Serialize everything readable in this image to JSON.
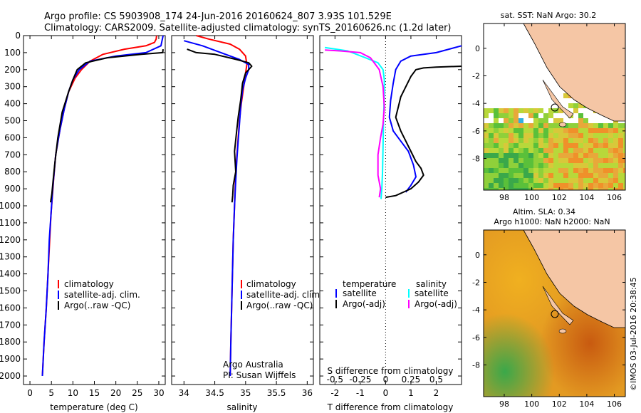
{
  "header": {
    "line1": "Argo profile: CS 5903908_174 24-Jun-2016 20160624_807 3.93S 101.529E",
    "line2": "Climatology: CARS2009. Satellite-adjusted climatology: synTS_20160626.nc (1.2d later)"
  },
  "colors": {
    "climatology": "#ff0000",
    "satellite": "#0000ff",
    "argo": "#000000",
    "salinity_satellite": "#00ffff",
    "salinity_argo": "#ff00ff",
    "land": "#f5c6a5",
    "sea_map2": "#e08a1c"
  },
  "chart_data": [
    {
      "type": "line",
      "xlabel": "temperature (deg C)",
      "ylabel": "",
      "xlim": [
        -1.5,
        31.5
      ],
      "ylim": [
        2050,
        0
      ],
      "xticks": [
        0,
        5,
        10,
        15,
        20,
        25,
        30
      ],
      "yticks": [
        0,
        100,
        200,
        300,
        400,
        500,
        600,
        700,
        800,
        900,
        1000,
        1100,
        1200,
        1300,
        1400,
        1500,
        1600,
        1700,
        1800,
        1900,
        2000
      ],
      "legend": [
        "climatology",
        "satellite-adj. clim.",
        "Argo(..raw -QC)"
      ],
      "series": [
        {
          "name": "climatology",
          "color": "#ff0000",
          "x": [
            29.5,
            29.4,
            29,
            27,
            22,
            17,
            14,
            12,
            10.5,
            9,
            8,
            7,
            6,
            5.5,
            5.2,
            4.9,
            4.6,
            4.2,
            3.8,
            3.3,
            2.9
          ],
          "y": [
            0,
            20,
            40,
            60,
            80,
            110,
            150,
            200,
            250,
            330,
            430,
            550,
            700,
            850,
            950,
            1050,
            1200,
            1400,
            1600,
            1800,
            2000
          ]
        },
        {
          "name": "satellite-adj. clim.",
          "color": "#0000ff",
          "x": [
            31,
            30.5,
            27,
            20,
            14,
            11.5,
            10,
            9,
            8,
            7,
            6,
            5.3,
            4.9,
            4.5,
            4.2,
            3.8,
            3.3,
            2.9
          ],
          "y": [
            0,
            60,
            100,
            120,
            150,
            200,
            260,
            330,
            430,
            550,
            700,
            900,
            1050,
            1200,
            1400,
            1600,
            1800,
            2000
          ]
        },
        {
          "name": "Argo(..raw -QC)",
          "color": "#000000",
          "x": [
            31,
            30.9,
            26,
            18,
            13,
            11,
            10,
            9,
            7.5,
            6.5,
            5.8,
            5.4,
            5.1,
            4.8
          ],
          "y": [
            80,
            100,
            110,
            130,
            160,
            200,
            260,
            330,
            450,
            600,
            750,
            850,
            930,
            980
          ]
        }
      ]
    },
    {
      "type": "line",
      "xlabel": "salinity",
      "ylabel": "",
      "xlim": [
        33.8,
        36.1
      ],
      "ylim": [
        2050,
        0
      ],
      "xticks": [
        34,
        34.5,
        35,
        35.5,
        36
      ],
      "legend": [
        "climatology",
        "satellite-adj. clim.",
        "Argo(..raw -QC)"
      ],
      "annotations": [
        "Argo Australia",
        "PI: Susan Wijffels"
      ],
      "series": [
        {
          "name": "climatology",
          "color": "#ff0000",
          "x": [
            34.2,
            34.4,
            34.75,
            34.9,
            35.0,
            35.02,
            35.0,
            34.97,
            34.93,
            34.9,
            34.88,
            34.86,
            34.84,
            34.82,
            34.8,
            34.78,
            34.76,
            34.75
          ],
          "y": [
            0,
            20,
            50,
            80,
            120,
            170,
            220,
            300,
            400,
            500,
            600,
            700,
            800,
            1000,
            1200,
            1500,
            1800,
            2000
          ]
        },
        {
          "name": "satellite-adj. clim.",
          "color": "#0000ff",
          "x": [
            34.0,
            34.3,
            34.6,
            34.9,
            35.05,
            35.05,
            35.0,
            34.95,
            34.92,
            34.9,
            34.88,
            34.86,
            34.84,
            34.82,
            34.8,
            34.78,
            34.76,
            34.75
          ],
          "y": [
            30,
            60,
            100,
            140,
            170,
            200,
            250,
            320,
            420,
            520,
            620,
            720,
            850,
            1000,
            1200,
            1500,
            1800,
            2000
          ]
        },
        {
          "name": "Argo(..raw -QC)",
          "color": "#000000",
          "x": [
            34.05,
            34.2,
            34.5,
            34.85,
            35.05,
            35.1,
            35.0,
            34.95,
            34.92,
            34.88,
            34.85,
            34.82,
            34.84,
            34.8,
            34.79,
            34.78
          ],
          "y": [
            80,
            100,
            110,
            140,
            160,
            180,
            220,
            280,
            380,
            480,
            580,
            680,
            800,
            880,
            940,
            980
          ]
        }
      ]
    },
    {
      "type": "line",
      "title": "",
      "xlabel": "T difference from climatology",
      "xlabel2": "S difference from climatology",
      "xlim": [
        -2.6,
        3.0
      ],
      "ylim": [
        2050,
        0
      ],
      "xticks": [
        -2,
        -1,
        0,
        1,
        2
      ],
      "xticks_top_labels": [
        "-0.5",
        "-0.25",
        "0",
        "0.25",
        "0.5"
      ],
      "legend_left": [
        "temperature",
        "satellite",
        "Argo(-adj)"
      ],
      "legend_right": [
        "salinity",
        "satellite",
        "Argo(-adj)"
      ],
      "series": [
        {
          "name": "T satellite",
          "color": "#0000ff",
          "x": [
            3,
            2,
            1.0,
            0.6,
            0.4,
            0.3,
            0.2,
            0.15,
            0.3,
            0.6,
            0.9,
            1.1,
            1.2,
            1.0,
            0.8
          ],
          "y": [
            60,
            100,
            120,
            150,
            200,
            280,
            380,
            480,
            560,
            620,
            680,
            760,
            830,
            880,
            920
          ]
        },
        {
          "name": "T Argo",
          "color": "#000000",
          "x": [
            3,
            2,
            1.5,
            1.2,
            1.0,
            0.8,
            0.6,
            0.5,
            0.4,
            0.6,
            0.8,
            1.0,
            1.2,
            1.4,
            1.5,
            1.3,
            1.0,
            0.4,
            0.0
          ],
          "y": [
            180,
            185,
            190,
            200,
            240,
            300,
            360,
            420,
            480,
            560,
            620,
            680,
            740,
            780,
            820,
            860,
            900,
            940,
            950
          ]
        },
        {
          "name": "S satellite",
          "color": "#00ffff",
          "x": [
            -2.4,
            -1.5,
            -0.8,
            -0.3,
            -0.1,
            -0.05,
            -0.06,
            -0.08,
            -0.1,
            -0.12,
            -0.15,
            -0.18
          ],
          "y": [
            70,
            90,
            130,
            160,
            200,
            260,
            380,
            500,
            650,
            800,
            900,
            960
          ]
        },
        {
          "name": "S Argo",
          "color": "#ff00ff",
          "x": [
            -2.4,
            -1.8,
            -1.0,
            -0.6,
            -0.4,
            -0.25,
            -0.1,
            -0.05,
            -0.1,
            -0.2,
            -0.3,
            -0.3,
            -0.2,
            -0.25
          ],
          "y": [
            85,
            90,
            100,
            130,
            170,
            200,
            300,
            420,
            520,
            600,
            700,
            820,
            900,
            950
          ]
        }
      ]
    }
  ],
  "maps": [
    {
      "title": "sat. SST: NaN Argo: 30.2",
      "xticks": [
        "98",
        "100",
        "102",
        "104",
        "106"
      ],
      "yticks": [
        "0",
        "-2",
        "-4",
        "-6",
        "-8"
      ]
    },
    {
      "title_line1": "Altim. SLA: 0.34",
      "title_line2": "Argo h1000: NaN h2000: NaN",
      "xticks": [
        "98",
        "100",
        "102",
        "104",
        "106"
      ],
      "yticks": [
        "0",
        "-2",
        "-4",
        "-6",
        "-8"
      ]
    }
  ],
  "float_position": {
    "lon": 101.529,
    "lat": -3.93
  },
  "stamp": "©IMOS 03-Jul-2016 20:38:45"
}
